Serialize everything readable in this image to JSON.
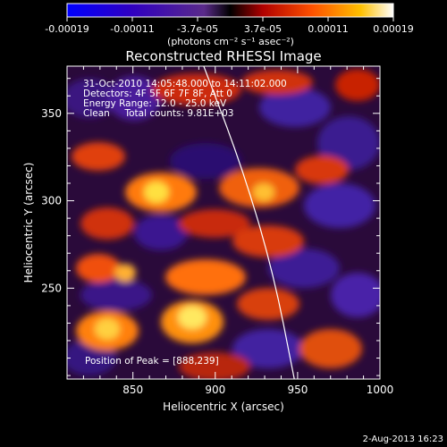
{
  "colorbar": {
    "ticks": [
      "-0.00019",
      "-0.00011",
      "-3.7e-05",
      "3.7e-05",
      "0.00011",
      "0.00019"
    ],
    "units": "(photons cm⁻² s⁻¹ asec⁻²)"
  },
  "chart_data": {
    "type": "heatmap",
    "title": "Reconstructed RHESSI Image",
    "xlabel": "Heliocentric X (arcsec)",
    "ylabel": "Heliocentric Y (arcsec)",
    "xlim": [
      810,
      1000
    ],
    "ylim": [
      198,
      377
    ],
    "xticks": [
      850,
      900,
      950,
      1000
    ],
    "yticks": [
      250,
      300,
      350
    ],
    "colorbar_range": [
      -0.00019,
      0.00019
    ],
    "peak": {
      "x": 888,
      "y": 239
    },
    "annotations": [
      "31-Oct-2010 14:05:48.000 to 14:11:02.000",
      "Detectors: 4F 5F 6F 7F 8F, Att 0",
      "Energy Range: 12.0 - 25.0 keV",
      "Clean     Total counts: 9.81E+03",
      "Position of Peak = [888,239]"
    ],
    "limb_curve": [
      [
        893,
        377
      ],
      [
        916,
        320
      ],
      [
        935,
        260
      ],
      [
        948,
        198
      ]
    ]
  },
  "footer": {
    "date": "2-Aug-2013 16:23"
  }
}
